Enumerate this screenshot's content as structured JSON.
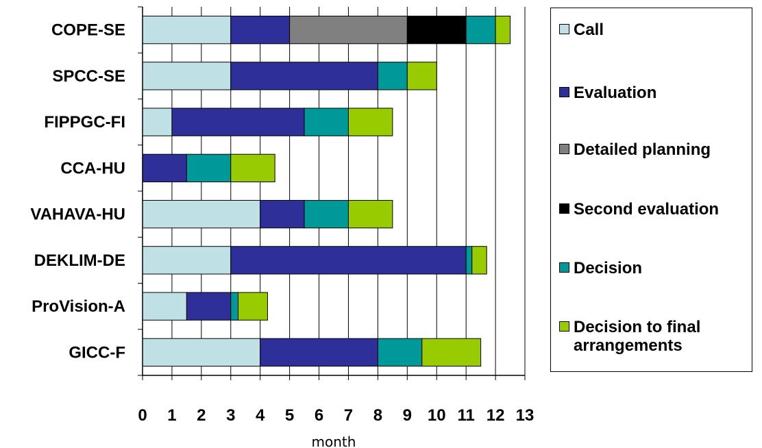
{
  "chart_data": {
    "type": "bar",
    "orientation": "horizontal",
    "stacked": true,
    "categories": [
      "COPE-SE",
      "SPCC-SE",
      "FIPPGC-FI",
      "CCA-HU",
      "VAHAVA-HU",
      "DEKLIM-DE",
      "ProVision-A",
      "GICC-F"
    ],
    "series": [
      {
        "name": "Call",
        "color": "#bfe1e6",
        "values": [
          3,
          3,
          1,
          0,
          4,
          3,
          1.5,
          4
        ]
      },
      {
        "name": "Evaluation",
        "color": "#2f2f9a",
        "values": [
          2,
          5,
          4.5,
          1.5,
          1.5,
          8,
          1.5,
          4
        ]
      },
      {
        "name": "Detailed planning",
        "color": "#808080",
        "values": [
          4,
          0,
          0,
          0,
          0,
          0,
          0,
          0
        ]
      },
      {
        "name": "Second evaluation",
        "color": "#000000",
        "values": [
          2,
          0,
          0,
          0,
          0,
          0,
          0,
          0
        ]
      },
      {
        "name": "Decision",
        "color": "#009999",
        "values": [
          1,
          1,
          1.5,
          1.5,
          1.5,
          0.2,
          0.25,
          1.5
        ]
      },
      {
        "name": "Decision to final\narrangements",
        "color": "#99cc00",
        "values": [
          0.5,
          1,
          1.5,
          1.5,
          1.5,
          0.5,
          1,
          2
        ]
      }
    ],
    "xlabel": "month",
    "ylabel": "",
    "xlim": [
      0,
      13
    ],
    "xticks": [
      "0",
      "1",
      "2",
      "3",
      "4",
      "5",
      "6",
      "7",
      "8",
      "9",
      "10",
      "11",
      "12",
      "13"
    ],
    "grid": "vertical",
    "grid_color": "#000000",
    "legend_position": "right"
  }
}
